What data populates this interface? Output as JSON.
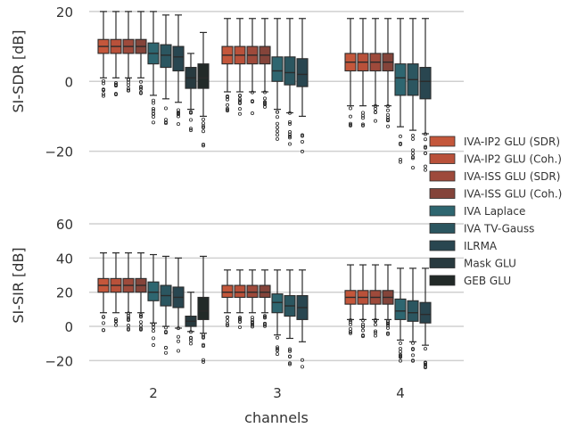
{
  "chart_data": {
    "type": "box",
    "xlabel": "channels",
    "categories": [
      "2",
      "3",
      "4"
    ],
    "legend": {
      "placement": "center-right",
      "entries": [
        {
          "label": "IVA-IP2 GLU (SDR)",
          "color": "#c4573b"
        },
        {
          "label": "IVA-IP2 GLU (Coh.)",
          "color": "#b9513a"
        },
        {
          "label": "IVA-ISS GLU (SDR)",
          "color": "#9e4a3b"
        },
        {
          "label": "IVA-ISS GLU (Coh.)",
          "color": "#84443a"
        },
        {
          "label": "IVA Laplace",
          "color": "#2e6670"
        },
        {
          "label": "IVA TV-Gauss",
          "color": "#2b5660"
        },
        {
          "label": "ILRMA",
          "color": "#294650"
        },
        {
          "label": "Mask GLU",
          "color": "#283a3f"
        },
        {
          "label": "GEB GLU",
          "color": "#222a28"
        }
      ]
    },
    "panels": [
      {
        "ylabel": "SI-SDR [dB]",
        "ylim": [
          -27,
          21
        ],
        "yticks": [
          -20,
          0,
          20
        ],
        "grid": true,
        "series": [
          {
            "name": "IVA-IP2 GLU (SDR)",
            "values": [
              {
                "x": "2",
                "whislo": 1,
                "q1": 8,
                "median": 10,
                "q3": 12,
                "whishi": 20
              },
              {
                "x": "3",
                "whislo": -3,
                "q1": 5,
                "median": 7.5,
                "q3": 10,
                "whishi": 18
              },
              {
                "x": "4",
                "whislo": -7,
                "q1": 3,
                "median": 5.5,
                "q3": 8,
                "whishi": 18
              }
            ]
          },
          {
            "name": "IVA-IP2 GLU (Coh.)",
            "values": [
              {
                "x": "2",
                "whislo": 1,
                "q1": 8,
                "median": 10,
                "q3": 12,
                "whishi": 20
              },
              {
                "x": "3",
                "whislo": -3,
                "q1": 5,
                "median": 7.5,
                "q3": 10,
                "whishi": 18
              },
              {
                "x": "4",
                "whislo": -7,
                "q1": 3,
                "median": 5.5,
                "q3": 8,
                "whishi": 18
              }
            ]
          },
          {
            "name": "IVA-ISS GLU (SDR)",
            "values": [
              {
                "x": "2",
                "whislo": 1,
                "q1": 8,
                "median": 10,
                "q3": 12,
                "whishi": 20
              },
              {
                "x": "3",
                "whislo": -3,
                "q1": 5,
                "median": 7.5,
                "q3": 10,
                "whishi": 18
              },
              {
                "x": "4",
                "whislo": -7,
                "q1": 3,
                "median": 5.5,
                "q3": 8,
                "whishi": 18
              }
            ]
          },
          {
            "name": "IVA-ISS GLU (Coh.)",
            "values": [
              {
                "x": "2",
                "whislo": 1,
                "q1": 8,
                "median": 10,
                "q3": 12,
                "whishi": 20
              },
              {
                "x": "3",
                "whislo": -3,
                "q1": 5,
                "median": 7.5,
                "q3": 10,
                "whishi": 18
              },
              {
                "x": "4",
                "whislo": -7,
                "q1": 3,
                "median": 5.5,
                "q3": 8,
                "whishi": 18
              }
            ]
          },
          {
            "name": "IVA Laplace",
            "values": [
              {
                "x": "2",
                "whislo": -4,
                "q1": 5,
                "median": 8,
                "q3": 11,
                "whishi": 20
              },
              {
                "x": "3",
                "whislo": -8,
                "q1": 0,
                "median": 3,
                "q3": 7,
                "whishi": 18
              },
              {
                "x": "4",
                "whislo": -13,
                "q1": -4,
                "median": 1,
                "q3": 5,
                "whishi": 18
              }
            ]
          },
          {
            "name": "IVA TV-Gauss",
            "values": [
              {
                "x": "2",
                "whislo": -5,
                "q1": 4,
                "median": 7.5,
                "q3": 10.5,
                "whishi": 19
              },
              {
                "x": "3",
                "whislo": -9,
                "q1": -1,
                "median": 2.5,
                "q3": 7,
                "whishi": 18
              },
              {
                "x": "4",
                "whislo": -14,
                "q1": -4,
                "median": 0.5,
                "q3": 5,
                "whishi": 18
              }
            ]
          },
          {
            "name": "ILRMA",
            "values": [
              {
                "x": "2",
                "whislo": -6,
                "q1": 3,
                "median": 7,
                "q3": 10,
                "whishi": 19
              },
              {
                "x": "3",
                "whislo": -10,
                "q1": -1.5,
                "median": 2,
                "q3": 6.5,
                "whishi": 18
              },
              {
                "x": "4",
                "whislo": -15,
                "q1": -5,
                "median": 0,
                "q3": 4,
                "whishi": 18
              }
            ]
          },
          {
            "name": "Mask GLU",
            "values": [
              {
                "x": "2",
                "whislo": -8,
                "q1": -2,
                "median": 1,
                "q3": 4,
                "whishi": 8
              }
            ]
          },
          {
            "name": "GEB GLU",
            "values": [
              {
                "x": "2",
                "whislo": -10,
                "q1": -2,
                "median": 1,
                "q3": 5,
                "whishi": 14
              }
            ]
          }
        ]
      },
      {
        "ylabel": "SI-SIR [dB]",
        "ylim": [
          -25,
          72
        ],
        "yticks": [
          -20,
          0,
          20,
          40,
          60
        ],
        "grid": true,
        "series": [
          {
            "name": "IVA-IP2 GLU (SDR)",
            "values": [
              {
                "x": "2",
                "whislo": 8,
                "q1": 20,
                "median": 24,
                "q3": 28,
                "whishi": 43
              },
              {
                "x": "3",
                "whislo": 8,
                "q1": 17,
                "median": 20,
                "q3": 24,
                "whishi": 33
              },
              {
                "x": "4",
                "whislo": 4,
                "q1": 13,
                "median": 17,
                "q3": 21,
                "whishi": 36
              }
            ]
          },
          {
            "name": "IVA-IP2 GLU (Coh.)",
            "values": [
              {
                "x": "2",
                "whislo": 8,
                "q1": 20,
                "median": 24,
                "q3": 28,
                "whishi": 43
              },
              {
                "x": "3",
                "whislo": 8,
                "q1": 17,
                "median": 20,
                "q3": 24,
                "whishi": 33
              },
              {
                "x": "4",
                "whislo": 4,
                "q1": 13,
                "median": 17,
                "q3": 21,
                "whishi": 36
              }
            ]
          },
          {
            "name": "IVA-ISS GLU (SDR)",
            "values": [
              {
                "x": "2",
                "whislo": 8,
                "q1": 20,
                "median": 24,
                "q3": 28,
                "whishi": 43
              },
              {
                "x": "3",
                "whislo": 8,
                "q1": 17,
                "median": 20,
                "q3": 24,
                "whishi": 33
              },
              {
                "x": "4",
                "whislo": 4,
                "q1": 13,
                "median": 17,
                "q3": 21,
                "whishi": 36
              }
            ]
          },
          {
            "name": "IVA-ISS GLU (Coh.)",
            "values": [
              {
                "x": "2",
                "whislo": 8,
                "q1": 20,
                "median": 24,
                "q3": 28,
                "whishi": 43
              },
              {
                "x": "3",
                "whislo": 8,
                "q1": 17,
                "median": 20,
                "q3": 24,
                "whishi": 33
              },
              {
                "x": "4",
                "whislo": 4,
                "q1": 13,
                "median": 17,
                "q3": 21,
                "whishi": 36
              }
            ]
          },
          {
            "name": "IVA Laplace",
            "values": [
              {
                "x": "2",
                "whislo": 2,
                "q1": 15,
                "median": 20,
                "q3": 26,
                "whishi": 42
              },
              {
                "x": "3",
                "whislo": -5,
                "q1": 8,
                "median": 14,
                "q3": 19,
                "whishi": 33
              },
              {
                "x": "4",
                "whislo": -8,
                "q1": 4,
                "median": 9,
                "q3": 16,
                "whishi": 34
              }
            ]
          },
          {
            "name": "IVA TV-Gauss",
            "values": [
              {
                "x": "2",
                "whislo": 0,
                "q1": 12,
                "median": 18,
                "q3": 24,
                "whishi": 41
              },
              {
                "x": "3",
                "whislo": -7,
                "q1": 6,
                "median": 12,
                "q3": 18,
                "whishi": 33
              },
              {
                "x": "4",
                "whislo": -9,
                "q1": 3,
                "median": 8,
                "q3": 15,
                "whishi": 34
              }
            ]
          },
          {
            "name": "ILRMA",
            "values": [
              {
                "x": "2",
                "whislo": -1,
                "q1": 11,
                "median": 17,
                "q3": 23,
                "whishi": 40
              },
              {
                "x": "3",
                "whislo": -9,
                "q1": 4,
                "median": 11,
                "q3": 18,
                "whishi": 33
              },
              {
                "x": "4",
                "whislo": -11,
                "q1": 2,
                "median": 7,
                "q3": 14,
                "whishi": 34
              }
            ]
          },
          {
            "name": "Mask GLU",
            "values": [
              {
                "x": "2",
                "whislo": -3,
                "q1": 0,
                "median": 3,
                "q3": 6,
                "whishi": 20
              }
            ]
          },
          {
            "name": "GEB GLU",
            "values": [
              {
                "x": "2",
                "whislo": -4,
                "q1": 4,
                "median": 9,
                "q3": 17,
                "whishi": 41
              }
            ]
          }
        ]
      }
    ]
  }
}
